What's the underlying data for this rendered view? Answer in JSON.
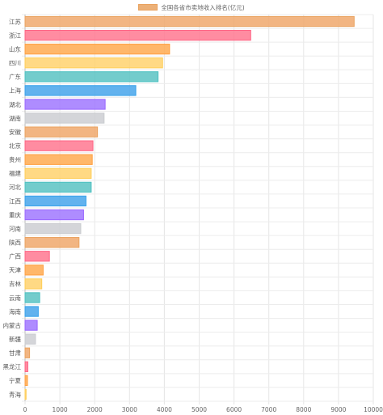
{
  "chart_data": {
    "type": "bar",
    "orientation": "horizontal",
    "title": "",
    "legend": {
      "position": "top",
      "entries": [
        "全国各省市卖地收入排名(亿元)"
      ]
    },
    "series": [
      {
        "name": "全国各省市卖地收入排名(亿元)",
        "values": [
          9450,
          6480,
          4150,
          3950,
          3820,
          3180,
          2300,
          2270,
          2080,
          1950,
          1930,
          1900,
          1900,
          1750,
          1680,
          1600,
          1550,
          700,
          520,
          480,
          420,
          380,
          350,
          300,
          130,
          80,
          70,
          30
        ]
      }
    ],
    "categories": [
      "江苏",
      "浙江",
      "山东",
      "四川",
      "广东",
      "上海",
      "湖北",
      "湖南",
      "安徽",
      "北京",
      "贵州",
      "福建",
      "河北",
      "江西",
      "重庆",
      "河南",
      "陕西",
      "广西",
      "天津",
      "吉林",
      "云南",
      "海南",
      "内蒙古",
      "新疆",
      "甘肃",
      "黑龙江",
      "宁夏",
      "青海"
    ],
    "xlim": [
      0,
      10000
    ],
    "xticks": [
      0,
      1000,
      2000,
      3000,
      4000,
      5000,
      6000,
      7000,
      8000,
      9000,
      10000
    ],
    "grid": true,
    "colors": [
      {
        "fill": "rgba(240,168,108,0.85)",
        "stroke": "#e9a25f"
      },
      {
        "fill": "rgba(255,120,145,0.85)",
        "stroke": "#ff6384"
      },
      {
        "fill": "rgba(255,170,80,0.85)",
        "stroke": "#ff9f40"
      },
      {
        "fill": "rgba(255,210,110,0.85)",
        "stroke": "#ffcd56"
      },
      {
        "fill": "rgba(90,195,195,0.85)",
        "stroke": "#4bc0c0"
      },
      {
        "fill": "rgba(70,165,235,0.85)",
        "stroke": "#36a2eb"
      },
      {
        "fill": "rgba(160,120,255,0.85)",
        "stroke": "#9966ff"
      },
      {
        "fill": "rgba(205,206,210,0.85)",
        "stroke": "#c9cbcf"
      }
    ]
  }
}
